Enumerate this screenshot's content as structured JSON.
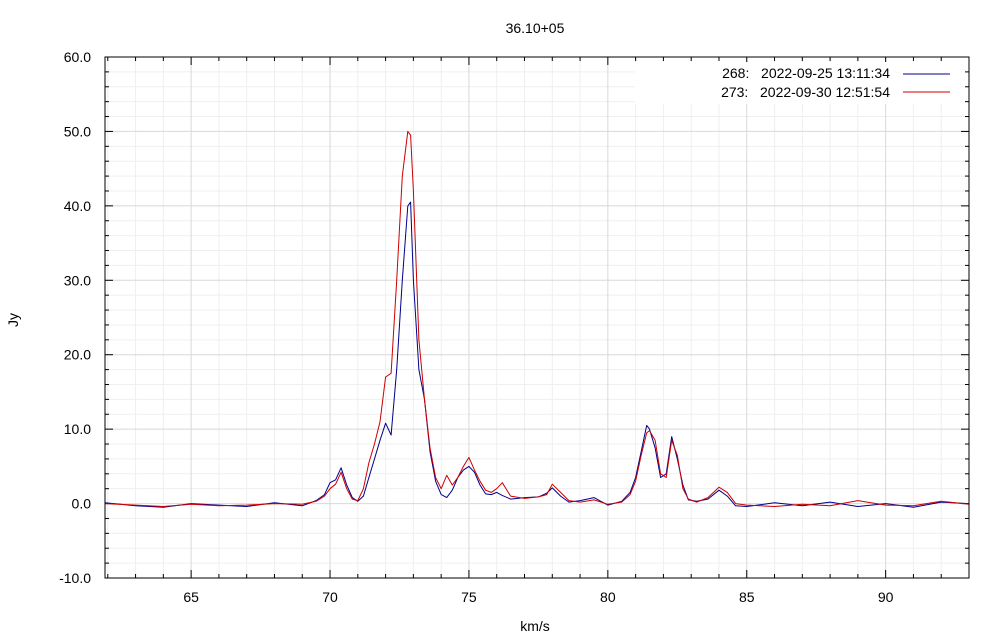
{
  "chart_data": {
    "type": "line",
    "title": "36.10+05",
    "xlabel": "km/s",
    "ylabel": "Jy",
    "xlim": [
      61.9,
      93.0
    ],
    "ylim": [
      -10.0,
      60.0
    ],
    "x_ticks": [
      65,
      70,
      75,
      80,
      85,
      90
    ],
    "y_ticks": [
      -10.0,
      0.0,
      10.0,
      20.0,
      30.0,
      40.0,
      50.0,
      60.0
    ],
    "y_tick_labels": [
      "-10.0",
      "0.0",
      "10.0",
      "20.0",
      "30.0",
      "40.0",
      "50.0",
      "60.0"
    ],
    "grid": true,
    "legend_position": "top-right",
    "series": [
      {
        "name": "268:   2022-09-25 13:11:34",
        "color": "#00008b",
        "x": [
          61.9,
          63.0,
          64.0,
          65.0,
          66.0,
          67.0,
          68.0,
          69.0,
          69.5,
          69.8,
          70.0,
          70.2,
          70.4,
          70.6,
          70.8,
          71.0,
          71.2,
          71.4,
          71.6,
          71.8,
          72.0,
          72.2,
          72.4,
          72.6,
          72.8,
          72.9,
          73.0,
          73.2,
          73.4,
          73.6,
          73.8,
          74.0,
          74.2,
          74.4,
          74.6,
          74.8,
          75.0,
          75.2,
          75.4,
          75.6,
          75.8,
          76.0,
          76.2,
          76.5,
          77.0,
          77.5,
          77.8,
          78.0,
          78.3,
          78.6,
          79.0,
          79.5,
          80.0,
          80.5,
          80.8,
          81.0,
          81.2,
          81.4,
          81.5,
          81.7,
          81.9,
          82.1,
          82.3,
          82.5,
          82.7,
          82.9,
          83.2,
          83.6,
          84.0,
          84.3,
          84.6,
          85.0,
          86.0,
          87.0,
          88.0,
          89.0,
          90.0,
          91.0,
          92.0,
          93.0
        ],
        "values": [
          0.1,
          -0.3,
          -0.5,
          0.0,
          -0.2,
          -0.4,
          0.1,
          -0.3,
          0.4,
          1.2,
          2.8,
          3.2,
          4.8,
          2.5,
          0.8,
          0.3,
          1.0,
          3.5,
          6.0,
          8.5,
          10.8,
          9.2,
          18.0,
          30.0,
          40.0,
          40.5,
          30.0,
          18.0,
          14.0,
          7.0,
          3.0,
          1.2,
          0.8,
          1.8,
          3.5,
          4.5,
          5.0,
          4.2,
          2.5,
          1.3,
          1.2,
          1.5,
          1.1,
          0.6,
          0.8,
          0.9,
          1.4,
          2.1,
          1.0,
          0.2,
          0.4,
          0.8,
          -0.2,
          0.3,
          1.5,
          3.5,
          7.0,
          10.5,
          10.0,
          7.5,
          3.5,
          4.0,
          9.0,
          6.0,
          2.5,
          0.5,
          0.3,
          0.6,
          1.8,
          1.0,
          -0.3,
          -0.4,
          0.1,
          -0.3,
          0.2,
          -0.4,
          0.0,
          -0.5,
          0.2,
          0.0
        ]
      },
      {
        "name": "273:   2022-09-30 12:51:54",
        "color": "#cc0000",
        "x": [
          61.9,
          63.0,
          64.0,
          65.0,
          66.0,
          67.0,
          68.0,
          69.0,
          69.5,
          69.8,
          70.0,
          70.2,
          70.4,
          70.6,
          70.8,
          71.0,
          71.2,
          71.4,
          71.6,
          71.8,
          72.0,
          72.2,
          72.4,
          72.6,
          72.8,
          72.9,
          73.0,
          73.2,
          73.4,
          73.6,
          73.8,
          74.0,
          74.2,
          74.4,
          74.6,
          74.8,
          75.0,
          75.2,
          75.4,
          75.6,
          75.8,
          76.0,
          76.2,
          76.5,
          77.0,
          77.5,
          77.8,
          78.0,
          78.3,
          78.6,
          79.0,
          79.5,
          80.0,
          80.5,
          80.8,
          81.0,
          81.2,
          81.4,
          81.5,
          81.7,
          81.9,
          82.1,
          82.3,
          82.5,
          82.7,
          82.9,
          83.2,
          83.6,
          84.0,
          84.3,
          84.6,
          85.0,
          86.0,
          87.0,
          88.0,
          89.0,
          90.0,
          91.0,
          92.0,
          93.0
        ],
        "values": [
          0.0,
          -0.2,
          -0.4,
          -0.1,
          -0.3,
          -0.2,
          0.0,
          -0.1,
          0.3,
          1.0,
          2.0,
          2.6,
          4.2,
          2.0,
          0.6,
          0.4,
          2.0,
          5.5,
          8.0,
          11.0,
          17.0,
          17.5,
          30.0,
          44.0,
          50.0,
          49.5,
          42.0,
          22.0,
          14.0,
          7.5,
          3.5,
          2.0,
          3.8,
          2.5,
          3.5,
          5.0,
          6.2,
          4.5,
          3.0,
          1.8,
          1.5,
          2.0,
          2.8,
          1.0,
          0.7,
          0.9,
          1.2,
          2.6,
          1.5,
          0.4,
          0.2,
          0.5,
          -0.1,
          0.2,
          1.2,
          3.0,
          6.5,
          9.5,
          9.8,
          8.5,
          4.0,
          3.5,
          8.5,
          6.5,
          2.0,
          0.6,
          0.2,
          0.8,
          2.2,
          1.5,
          0.0,
          -0.2,
          -0.4,
          -0.1,
          -0.3,
          0.4,
          -0.2,
          -0.3,
          0.3,
          -0.1
        ]
      }
    ]
  }
}
